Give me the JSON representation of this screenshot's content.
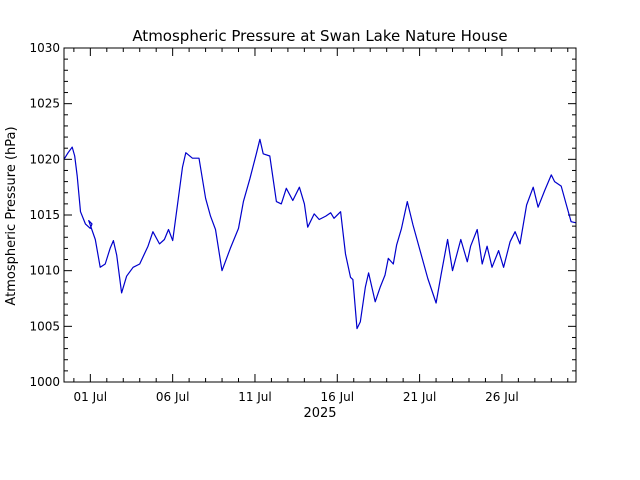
{
  "chart_data": {
    "type": "line",
    "title": "Atmospheric Pressure at Swan Lake Nature House",
    "xlabel": "2025",
    "ylabel": "Atmospheric Pressure (hPa)",
    "xlim": [
      -1.6,
      29.5
    ],
    "ylim": [
      1000,
      1030
    ],
    "x_ticks": [
      {
        "value": 0,
        "label": "01 Jul"
      },
      {
        "value": 5,
        "label": "06 Jul"
      },
      {
        "value": 10,
        "label": "11 Jul"
      },
      {
        "value": 15,
        "label": "16 Jul"
      },
      {
        "value": 20,
        "label": "21 Jul"
      },
      {
        "value": 25,
        "label": "26 Jul"
      }
    ],
    "y_ticks": [
      1000,
      1005,
      1010,
      1015,
      1020,
      1025,
      1030
    ],
    "grid": false,
    "line_color": "#0000cc",
    "series": [
      {
        "x": [
          -1.6,
          -1.35,
          -1.1,
          -0.95,
          -0.8,
          -0.6,
          -0.3,
          0.0,
          0.1,
          -0.1,
          0.3,
          0.6,
          0.9,
          1.2,
          1.4,
          1.6,
          1.9,
          2.2,
          2.6,
          3.0,
          3.5,
          3.8,
          4.2,
          4.5,
          4.75,
          5.0,
          5.3,
          5.6,
          5.8,
          6.2,
          6.6,
          7.0,
          7.3,
          7.6,
          8.0,
          8.5,
          9.0,
          9.3,
          9.7,
          10.1,
          10.3,
          10.5,
          10.9,
          11.3,
          11.6,
          11.9,
          12.3,
          12.7,
          13.0,
          13.2,
          13.6,
          13.9,
          14.3,
          14.6,
          14.8,
          15.2,
          15.5,
          15.8,
          15.95,
          16.2,
          16.4,
          16.7,
          16.9,
          17.3,
          17.6,
          17.9,
          18.1,
          18.4,
          18.6,
          18.9,
          19.25,
          19.6,
          20.5,
          21.0,
          21.3,
          21.7,
          22.0,
          22.5,
          22.9,
          23.1,
          23.5,
          23.8,
          24.1,
          24.4,
          24.8,
          25.1,
          25.5,
          25.8,
          26.1,
          26.5,
          26.9,
          27.2,
          27.6,
          28.0,
          28.2,
          28.6,
          28.9,
          29.2,
          29.5
        ],
        "y": [
          1020.0,
          1020.6,
          1021.1,
          1020.3,
          1018.5,
          1015.3,
          1014.2,
          1013.8,
          1014.2,
          1014.5,
          1012.8,
          1010.3,
          1010.6,
          1012.0,
          1012.7,
          1011.4,
          1008.0,
          1009.5,
          1010.3,
          1010.6,
          1012.2,
          1013.5,
          1012.4,
          1012.8,
          1013.7,
          1012.7,
          1016.0,
          1019.3,
          1020.6,
          1020.1,
          1020.1,
          1016.5,
          1014.9,
          1013.7,
          1010.0,
          1012.0,
          1013.8,
          1016.2,
          1018.3,
          1020.6,
          1021.8,
          1020.5,
          1020.3,
          1016.2,
          1016.0,
          1017.4,
          1016.3,
          1017.5,
          1016.0,
          1013.9,
          1015.1,
          1014.6,
          1014.9,
          1015.2,
          1014.7,
          1015.3,
          1011.5,
          1009.4,
          1009.2,
          1004.8,
          1005.4,
          1008.5,
          1009.8,
          1007.2,
          1008.5,
          1009.6,
          1011.1,
          1010.6,
          1012.3,
          1013.8,
          1016.2,
          1014.1,
          1009.3,
          1007.1,
          1009.6,
          1012.8,
          1010.0,
          1012.8,
          1010.8,
          1012.2,
          1013.7,
          1010.6,
          1012.2,
          1010.3,
          1011.8,
          1010.3,
          1012.6,
          1013.5,
          1012.4,
          1015.9,
          1017.5,
          1015.7,
          1017.2,
          1018.6,
          1018.0,
          1017.6,
          1016.0,
          1014.4,
          1014.3
        ]
      }
    ]
  }
}
